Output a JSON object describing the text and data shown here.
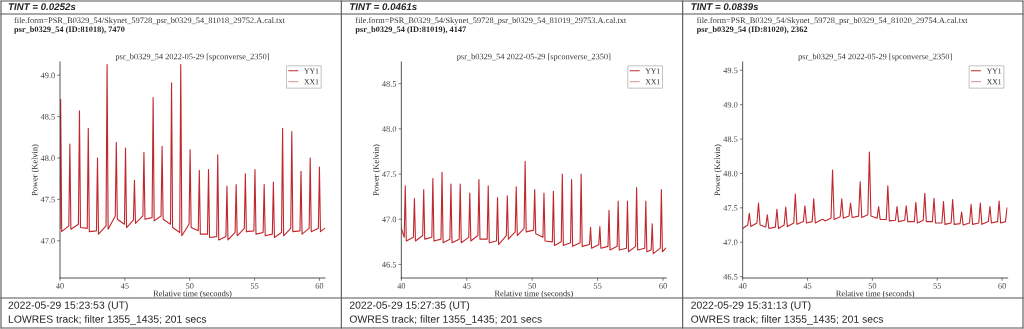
{
  "chart_data": [
    {
      "type": "line",
      "title": "psr_b0329_54 2022-05-29 [spconverse_2350]",
      "xlabel": "Relative time (seconds)",
      "ylabel": "Power (Kelvin)",
      "xlim": [
        40,
        60.43
      ],
      "xticks": [
        40,
        45,
        50,
        55,
        60
      ],
      "ylim": [
        46.55,
        49.16
      ],
      "yticks": [
        {
          "value": 47,
          "label": "47.0"
        },
        47.5,
        {
          "value": 48,
          "label": "48.0"
        },
        48.5,
        {
          "value": 49,
          "label": "49.0"
        }
      ],
      "legend": "top right",
      "grid": false,
      "annotations": [
        "TINT = 0.0252s",
        "file.form=PSR_B0329_54/Skynet_59728_psr_b0329_54_81018_29752.A.cal.txt",
        "psr_b0329_54 (ID:81018), 7470",
        "2022-05-29 15:23:53 (UT)",
        "LOWRES track; filter 1355_1435; 201 secs"
      ],
      "series": [
        {
          "name": "YY1",
          "color": "#c0282d",
          "x": [
            40.0,
            40.05,
            40.13,
            40.68,
            40.76,
            40.84,
            41.42,
            41.5,
            41.58,
            42.1,
            42.18,
            42.26,
            42.81,
            42.89,
            42.97,
            43.55,
            43.63,
            43.71,
            44.26,
            44.34,
            44.42,
            44.97,
            45.05,
            45.13,
            45.66,
            45.74,
            45.82,
            46.39,
            46.47,
            46.55,
            47.1,
            47.18,
            47.26,
            47.79,
            47.87,
            47.95,
            48.52,
            48.6,
            48.68,
            49.23,
            49.31,
            49.39,
            49.95,
            50.03,
            50.11,
            50.66,
            50.74,
            50.82,
            51.37,
            51.45,
            51.53,
            52.08,
            52.16,
            52.24,
            52.79,
            52.87,
            52.95,
            53.5,
            53.58,
            53.66,
            54.21,
            54.29,
            54.37,
            54.95,
            55.03,
            55.11,
            55.66,
            55.74,
            55.82,
            56.37,
            56.45,
            56.53,
            57.08,
            57.16,
            57.24,
            57.79,
            57.87,
            57.95,
            58.5,
            58.58,
            58.66,
            59.21,
            59.29,
            59.37,
            59.92,
            60.0,
            60.08,
            60.4
          ],
          "values": [
            47.15,
            48.71,
            47.11,
            47.18,
            48.17,
            47.14,
            47.2,
            48.57,
            47.16,
            47.15,
            48.36,
            47.11,
            47.12,
            48.0,
            47.08,
            47.18,
            49.13,
            47.14,
            47.3,
            48.19,
            47.26,
            47.2,
            48.12,
            47.16,
            47.25,
            47.73,
            47.21,
            47.3,
            48.07,
            47.26,
            47.28,
            48.73,
            47.24,
            47.3,
            48.14,
            47.26,
            47.2,
            48.91,
            47.16,
            47.1,
            49.13,
            47.06,
            47.2,
            48.1,
            47.16,
            47.12,
            47.85,
            47.08,
            47.08,
            47.86,
            47.04,
            47.05,
            48.04,
            47.01,
            47.05,
            47.66,
            47.01,
            47.1,
            47.68,
            47.06,
            47.15,
            47.81,
            47.11,
            47.12,
            47.86,
            47.08,
            47.1,
            47.68,
            47.06,
            47.08,
            47.71,
            47.04,
            47.1,
            48.36,
            47.06,
            47.15,
            48.32,
            47.11,
            47.12,
            47.84,
            47.08,
            47.15,
            48.0,
            47.11,
            47.15,
            47.89,
            47.11,
            47.15
          ]
        },
        {
          "name": "XX1",
          "color": "#d8a8a8"
        }
      ]
    },
    {
      "type": "line",
      "title": "psr_b0329_54 2022-05-29 [spconverse_2350]",
      "xlabel": "Relative time (seconds)",
      "ylabel": "Power (Kelvin)",
      "xlim": [
        40,
        60.25
      ],
      "xticks": [
        40,
        45,
        50,
        55,
        60
      ],
      "ylim": [
        46.35,
        48.74
      ],
      "yticks": [
        46.5,
        {
          "value": 47,
          "label": "47.0"
        },
        47.5,
        {
          "value": 48,
          "label": "48.0"
        },
        48.5
      ],
      "legend": "top right",
      "grid": false,
      "annotations": [
        "TINT = 0.0461s",
        "file.form=PSR_B0329_54/Skynet_59728_psr_b0329_54_81019_29753.A.cal.txt",
        "psr_b0329_54 (ID:81019), 4147",
        "2022-05-29 15:27:35 (UT)",
        "OWRES track; filter 1355_1435; 201 secs"
      ],
      "series": [
        {
          "name": "YY1",
          "color": "#c0282d",
          "x": [
            40.0,
            40.22,
            40.3,
            40.38,
            40.92,
            41.0,
            41.08,
            41.63,
            41.71,
            41.79,
            42.33,
            42.41,
            42.49,
            43.03,
            43.11,
            43.19,
            43.71,
            43.79,
            43.87,
            44.42,
            44.5,
            44.58,
            45.15,
            45.23,
            45.31,
            45.85,
            45.93,
            46.01,
            46.56,
            46.64,
            46.72,
            47.27,
            47.35,
            47.43,
            48.02,
            48.1,
            48.18,
            48.7,
            48.78,
            48.86,
            49.38,
            49.46,
            49.54,
            50.11,
            50.19,
            50.27,
            50.82,
            50.9,
            50.98,
            51.54,
            51.62,
            51.7,
            52.22,
            52.3,
            52.38,
            52.93,
            53.01,
            53.09,
            53.66,
            53.74,
            53.82,
            54.38,
            54.46,
            54.54,
            55.09,
            55.17,
            55.25,
            55.79,
            55.87,
            55.95,
            56.49,
            56.57,
            56.65,
            57.2,
            57.28,
            57.36,
            57.9,
            57.98,
            58.06,
            58.6,
            58.68,
            58.76,
            59.09,
            59.17,
            59.25,
            59.79,
            59.87,
            59.95,
            60.2
          ],
          "values": [
            46.9,
            46.8,
            47.37,
            46.76,
            46.8,
            47.23,
            46.76,
            46.82,
            47.33,
            46.78,
            46.8,
            47.45,
            46.76,
            46.78,
            47.52,
            46.74,
            46.78,
            47.39,
            46.74,
            46.78,
            47.39,
            46.74,
            46.8,
            47.29,
            46.76,
            46.82,
            47.44,
            46.78,
            46.78,
            47.37,
            46.74,
            46.76,
            47.24,
            46.72,
            46.82,
            47.26,
            46.78,
            46.86,
            47.36,
            46.82,
            46.9,
            47.64,
            46.86,
            46.88,
            47.33,
            46.84,
            46.8,
            47.29,
            46.76,
            46.75,
            47.31,
            46.71,
            46.75,
            47.5,
            46.71,
            46.74,
            47.44,
            46.7,
            46.74,
            47.5,
            46.7,
            46.72,
            46.91,
            46.68,
            46.72,
            46.92,
            46.68,
            46.7,
            47.1,
            46.66,
            46.7,
            47.2,
            46.66,
            46.68,
            47.2,
            46.64,
            46.7,
            47.35,
            46.66,
            46.68,
            47.2,
            46.64,
            46.66,
            46.95,
            46.62,
            46.68,
            47.33,
            46.64,
            46.68
          ]
        },
        {
          "name": "XX1",
          "color": "#d8a8a8"
        }
      ]
    },
    {
      "type": "line",
      "title": "psr_b0329_54 2022-05-29 [spconverse_2350]",
      "xlabel": "Relative time (seconds)",
      "ylabel": "Power (Kelvin)",
      "xlim": [
        40,
        60.43
      ],
      "xticks": [
        40,
        45,
        50,
        55,
        60
      ],
      "ylim": [
        46.48,
        49.62
      ],
      "yticks": [
        46.5,
        {
          "value": 47,
          "label": "47.0"
        },
        47.5,
        {
          "value": 48,
          "label": "48.0"
        },
        48.5,
        {
          "value": 49,
          "label": "49.0"
        },
        49.5
      ],
      "legend": "top right",
      "grid": false,
      "annotations": [
        "TINT = 0.0839s",
        "file.form=PSR_B0329_54/Skynet_59728_psr_b0329_54_81020_29754.A.cal.txt",
        "psr_b0329_54 (ID:81020), 2362",
        "2022-05-29 15:31:13 (UT)",
        "OWRES track; filter 1355_1435; 201 secs"
      ],
      "series": [
        {
          "name": "YY1",
          "color": "#c0282d",
          "x": [
            40.0,
            40.39,
            40.51,
            40.63,
            41.1,
            41.22,
            41.34,
            41.78,
            41.9,
            42.02,
            42.52,
            42.64,
            42.76,
            43.2,
            43.32,
            43.44,
            43.94,
            44.06,
            44.18,
            44.68,
            44.8,
            44.92,
            45.36,
            45.48,
            45.6,
            46.1,
            46.22,
            46.34,
            46.81,
            46.93,
            47.05,
            47.52,
            47.64,
            47.76,
            48.2,
            48.32,
            48.44,
            48.94,
            49.06,
            49.18,
            49.65,
            49.77,
            49.89,
            50.36,
            50.48,
            50.6,
            51.07,
            51.19,
            51.31,
            51.78,
            51.9,
            52.02,
            52.49,
            52.61,
            52.73,
            53.23,
            53.35,
            53.47,
            53.92,
            54.04,
            54.16,
            54.63,
            54.75,
            54.87,
            55.36,
            55.48,
            55.6,
            56.07,
            56.19,
            56.31,
            56.76,
            56.88,
            57.0,
            57.49,
            57.61,
            57.73,
            58.2,
            58.32,
            58.44,
            58.94,
            59.06,
            59.18,
            59.65,
            59.77,
            59.89,
            60.26,
            60.38
          ],
          "values": [
            47.2,
            47.25,
            47.42,
            47.23,
            47.28,
            47.57,
            47.25,
            47.22,
            47.4,
            47.2,
            47.22,
            47.48,
            47.2,
            47.25,
            47.51,
            47.23,
            47.28,
            47.7,
            47.26,
            47.3,
            47.53,
            47.28,
            47.3,
            47.63,
            47.28,
            47.33,
            47.33,
            47.31,
            47.35,
            48.05,
            47.33,
            47.37,
            47.63,
            47.35,
            47.38,
            47.57,
            47.36,
            47.38,
            47.88,
            47.36,
            47.4,
            48.31,
            47.38,
            47.35,
            47.52,
            47.33,
            47.33,
            47.82,
            47.31,
            47.32,
            47.52,
            47.3,
            47.32,
            47.53,
            47.3,
            47.3,
            47.58,
            47.28,
            47.32,
            47.71,
            47.3,
            47.3,
            47.64,
            47.28,
            47.28,
            47.59,
            47.26,
            47.28,
            47.62,
            47.26,
            47.27,
            47.44,
            47.25,
            47.28,
            47.55,
            47.26,
            47.28,
            47.57,
            47.26,
            47.3,
            47.52,
            47.28,
            47.3,
            47.6,
            47.28,
            47.3,
            47.5
          ]
        },
        {
          "name": "XX1",
          "color": "#d8a8a8"
        }
      ]
    }
  ]
}
